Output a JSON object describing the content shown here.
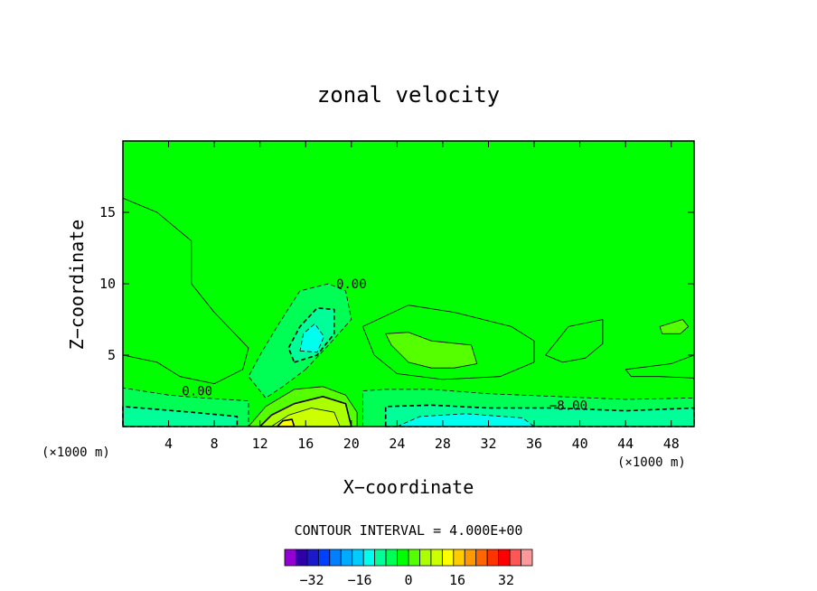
{
  "chart_data": {
    "type": "heatmap",
    "title": "zonal velocity",
    "xlabel": "X−coordinate",
    "ylabel": "Z−coordinate",
    "x_unit_left": "(×1000 m)",
    "x_unit_right": "(×1000 m)",
    "xlim": [
      0,
      50
    ],
    "ylim": [
      0,
      20
    ],
    "x_ticks": [
      4,
      8,
      12,
      16,
      20,
      24,
      28,
      32,
      36,
      40,
      44,
      48
    ],
    "y_ticks": [
      5,
      10,
      15
    ],
    "contour_interval_text": "CONTOUR INTERVAL = 4.000E+00",
    "contour_labels": [
      {
        "text": "0.00",
        "x": 20,
        "y": 10
      },
      {
        "text": "0.00",
        "x": 6.5,
        "y": 2.5
      },
      {
        "text": "−8.00",
        "x": 39,
        "y": 1.5
      }
    ],
    "background_value": 0,
    "regions": [
      {
        "name": "upper-left-positive",
        "value": 2,
        "points": [
          [
            0,
            16
          ],
          [
            3,
            15
          ],
          [
            6,
            13
          ],
          [
            6,
            10
          ],
          [
            8,
            8
          ],
          [
            11,
            5.5
          ],
          [
            10.5,
            4
          ],
          [
            8,
            3
          ],
          [
            5,
            3.5
          ],
          [
            3,
            4.5
          ],
          [
            0,
            5
          ]
        ]
      },
      {
        "name": "left-lower-band",
        "value": -4,
        "points": [
          [
            0,
            0
          ],
          [
            11,
            0
          ],
          [
            11,
            1.8
          ],
          [
            7,
            2
          ],
          [
            4,
            2.2
          ],
          [
            0,
            2.7
          ]
        ]
      },
      {
        "name": "left-lower-core",
        "value": -8,
        "points": [
          [
            0,
            0
          ],
          [
            10,
            0
          ],
          [
            10,
            0.7
          ],
          [
            6,
            1
          ],
          [
            3,
            1.2
          ],
          [
            0,
            1.4
          ]
        ]
      },
      {
        "name": "central-negative-blob",
        "value": -4,
        "points": [
          [
            16,
            4
          ],
          [
            18,
            5.7
          ],
          [
            20,
            7.5
          ],
          [
            19.5,
            9.5
          ],
          [
            18,
            10
          ],
          [
            15.5,
            9.5
          ],
          [
            13.5,
            7
          ],
          [
            12,
            5
          ],
          [
            11,
            3.5
          ],
          [
            12.5,
            2
          ],
          [
            14,
            2.8
          ]
        ]
      },
      {
        "name": "central-negative-core",
        "value": -8,
        "points": [
          [
            15,
            4.5
          ],
          [
            17,
            5
          ],
          [
            18.5,
            6.5
          ],
          [
            18.5,
            8.2
          ],
          [
            17,
            8.3
          ],
          [
            15.5,
            7
          ],
          [
            14.5,
            5.5
          ]
        ]
      },
      {
        "name": "central-negative-inner",
        "value": -12,
        "points": [
          [
            15.5,
            5.3
          ],
          [
            17,
            5.2
          ],
          [
            17.6,
            6.3
          ],
          [
            16.8,
            7.2
          ],
          [
            15.8,
            6.5
          ]
        ]
      },
      {
        "name": "lower-positive-outer",
        "value": 4,
        "points": [
          [
            11,
            0
          ],
          [
            20.5,
            0
          ],
          [
            20.5,
            1
          ],
          [
            19.5,
            2.2
          ],
          [
            17.5,
            2.8
          ],
          [
            15,
            2.6
          ],
          [
            12.5,
            1.4
          ]
        ]
      },
      {
        "name": "lower-positive-mid",
        "value": 8,
        "points": [
          [
            12,
            0
          ],
          [
            20,
            0
          ],
          [
            19.5,
            1.6
          ],
          [
            17.5,
            2.1
          ],
          [
            15,
            1.6
          ],
          [
            13,
            0.8
          ]
        ]
      },
      {
        "name": "lower-positive-inner",
        "value": 12,
        "points": [
          [
            13,
            0
          ],
          [
            19,
            0
          ],
          [
            18.5,
            1
          ],
          [
            16.5,
            1.3
          ],
          [
            14.5,
            0.8
          ]
        ]
      },
      {
        "name": "lower-positive-core",
        "value": 16,
        "points": [
          [
            13.5,
            0
          ],
          [
            15,
            0
          ],
          [
            14.8,
            0.5
          ],
          [
            14,
            0.4
          ]
        ]
      },
      {
        "name": "right-positive-outer",
        "value": 2,
        "points": [
          [
            21,
            7
          ],
          [
            25,
            8.5
          ],
          [
            29,
            8
          ],
          [
            34,
            7
          ],
          [
            36,
            6
          ],
          [
            36,
            4.5
          ],
          [
            33,
            3.5
          ],
          [
            28,
            3.3
          ],
          [
            24,
            3.7
          ],
          [
            22,
            5
          ]
        ]
      },
      {
        "name": "right-positive-inner",
        "value": 4,
        "points": [
          [
            23,
            6.5
          ],
          [
            25,
            6.6
          ],
          [
            27,
            6
          ],
          [
            30.5,
            5.7
          ],
          [
            31,
            4.4
          ],
          [
            29,
            4.1
          ],
          [
            27,
            4.1
          ],
          [
            25,
            4.5
          ],
          [
            23.5,
            5.7
          ]
        ]
      },
      {
        "name": "lower-right-band",
        "value": -4,
        "points": [
          [
            21,
            0
          ],
          [
            50,
            0
          ],
          [
            50,
            2
          ],
          [
            44,
            1.9
          ],
          [
            38,
            2.1
          ],
          [
            32,
            2.3
          ],
          [
            27,
            2.6
          ],
          [
            23,
            2.6
          ],
          [
            21,
            2.5
          ]
        ]
      },
      {
        "name": "lower-right-core",
        "value": -8,
        "points": [
          [
            23,
            0
          ],
          [
            50,
            0
          ],
          [
            50,
            1.3
          ],
          [
            44,
            1.1
          ],
          [
            38,
            1.3
          ],
          [
            32,
            1.3
          ],
          [
            27,
            1.5
          ],
          [
            23,
            1.4
          ]
        ]
      },
      {
        "name": "lower-right-inner",
        "value": -12,
        "points": [
          [
            24,
            0
          ],
          [
            36,
            0
          ],
          [
            35,
            0.6
          ],
          [
            30,
            0.9
          ],
          [
            26,
            0.7
          ]
        ]
      },
      {
        "name": "right-mid-positive",
        "value": 2,
        "points": [
          [
            37,
            5
          ],
          [
            39,
            7
          ],
          [
            42,
            7.5
          ],
          [
            42,
            5.8
          ],
          [
            40.5,
            4.8
          ],
          [
            38.5,
            4.5
          ]
        ]
      },
      {
        "name": "far-right-blob",
        "value": 4,
        "points": [
          [
            47,
            7
          ],
          [
            49,
            7.5
          ],
          [
            49.5,
            7
          ],
          [
            48.8,
            6.5
          ],
          [
            47.2,
            6.5
          ]
        ]
      },
      {
        "name": "right-small-patch",
        "value": 2,
        "points": [
          [
            44,
            4
          ],
          [
            48,
            4.4
          ],
          [
            50,
            5
          ],
          [
            50,
            3.4
          ],
          [
            47,
            3.5
          ],
          [
            44.5,
            3.5
          ]
        ]
      }
    ],
    "colorbar": {
      "colors": [
        "#9400d3",
        "#2f00a8",
        "#1a1acc",
        "#0040ff",
        "#0080ff",
        "#00aaff",
        "#00ccff",
        "#00ffee",
        "#00ff99",
        "#00ff55",
        "#00ff00",
        "#55ff00",
        "#aaff00",
        "#ccff00",
        "#ffff00",
        "#ffcc00",
        "#ff9900",
        "#ff6600",
        "#ff3300",
        "#ff0000",
        "#ff5555",
        "#ff9999"
      ],
      "tick_labels": [
        "−32",
        "−16",
        "0",
        "16",
        "32"
      ]
    },
    "grid": false,
    "legend": "bottom-center"
  }
}
